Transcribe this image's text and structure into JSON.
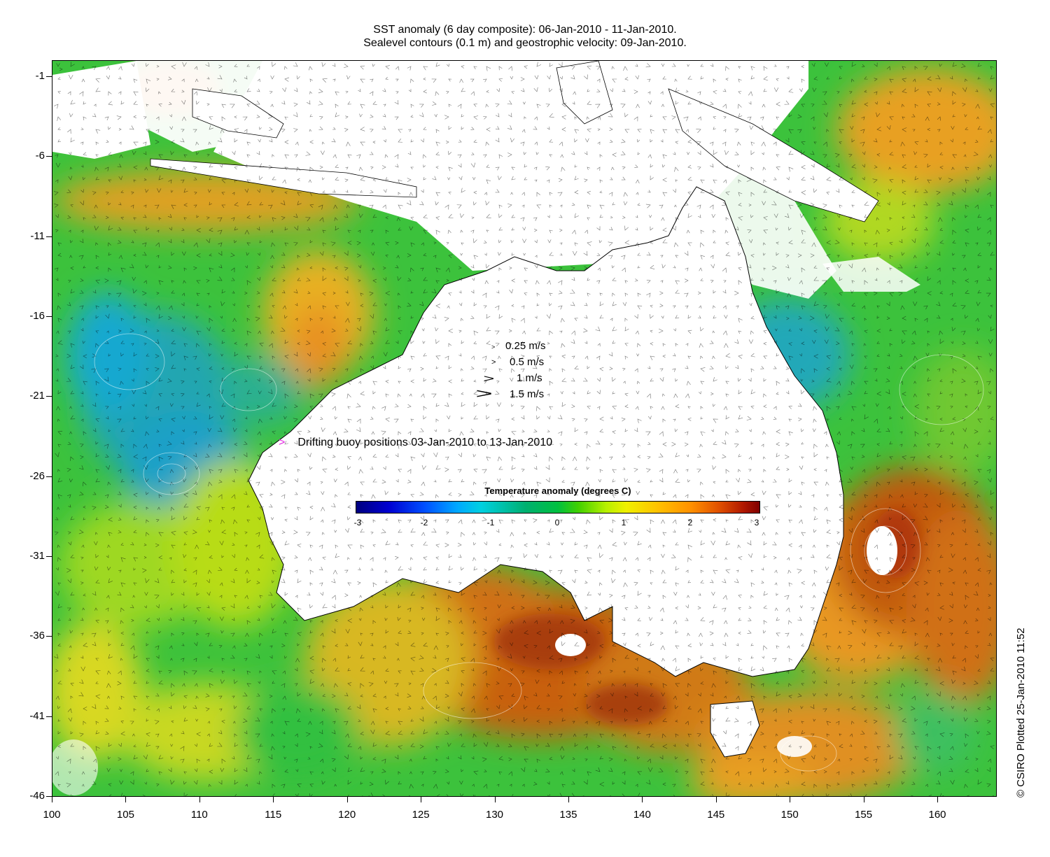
{
  "title_line1": "SST anomaly (6 day composite): 06-Jan-2010 - 11-Jan-2010.",
  "title_line2": "Sealevel contours (0.1 m) and geostrophic velocity: 09-Jan-2010.",
  "x_ticks": [
    "100",
    "105",
    "110",
    "115",
    "120",
    "125",
    "130",
    "135",
    "140",
    "145",
    "150",
    "155",
    "160"
  ],
  "y_ticks": [
    "-1",
    "-6",
    "-11",
    "-16",
    "-21",
    "-26",
    "-31",
    "-36",
    "-41",
    "-46"
  ],
  "velocity_legend": [
    {
      "label": "0.25 m/s",
      "arrow": ">"
    },
    {
      "label": "0.5 m/s",
      "arrow": ">"
    },
    {
      "label": "1 m/s",
      "arrow": ">"
    },
    {
      "label": "1.5 m/s",
      "arrow": ">"
    }
  ],
  "buoy_legend": {
    "marker": ">",
    "label": "Drifting buoy positions 03-Jan-2010 to 13-Jan-2010"
  },
  "colorbar": {
    "title": "Temperature anomaly (degrees C)",
    "ticks": [
      "-3",
      "-2",
      "-1",
      "0",
      "1",
      "2",
      "3"
    ],
    "range": [
      -3,
      3
    ]
  },
  "credit": "© CSIRO Plotted 25-Jan-2010 11:52",
  "map_extent": {
    "lon": [
      100,
      164
    ],
    "lat": [
      -46,
      0
    ]
  },
  "colors": {
    "land": "#ffffff",
    "ocean_mid": "#40c840",
    "warm": "#e8a020",
    "hot": "#b84a10",
    "cool": "#2aa8e0",
    "buoy": "#e22ce2"
  }
}
